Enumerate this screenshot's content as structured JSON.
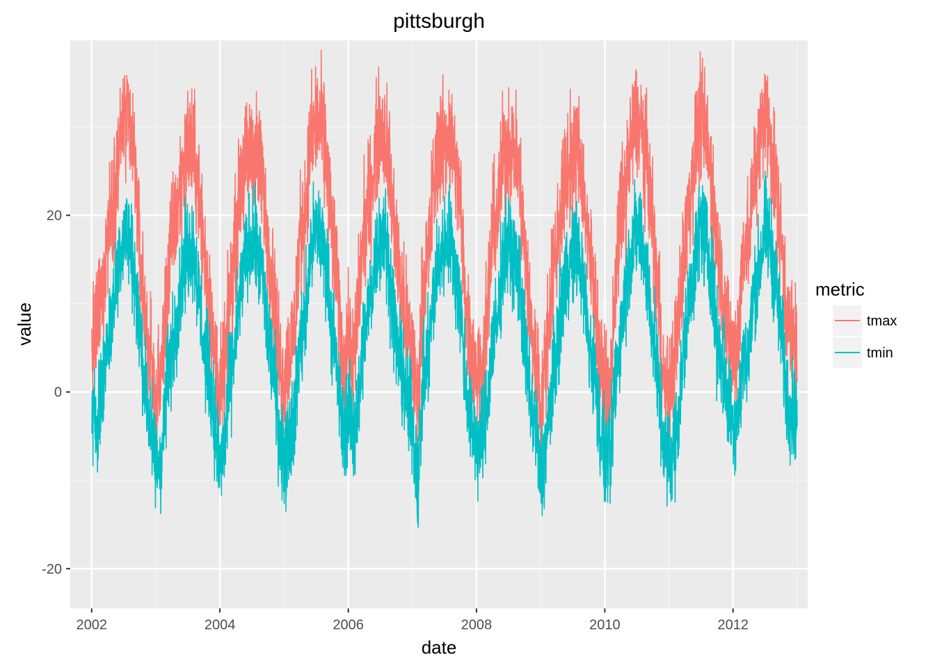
{
  "chart_data": {
    "type": "line",
    "title": "pittsburgh",
    "xlabel": "date",
    "ylabel": "value",
    "x_range": [
      "2001-09-01",
      "2013-03-01"
    ],
    "ylim": [
      -24.5,
      39.8
    ],
    "x_ticks": [
      "2002",
      "2004",
      "2006",
      "2008",
      "2010",
      "2012"
    ],
    "y_ticks": [
      -20,
      0,
      20
    ],
    "grid": true,
    "legend": {
      "title": "metric",
      "position": "right"
    },
    "series": [
      {
        "name": "tmax",
        "color": "#F8766D",
        "values": [
          [
            "2002-01-01",
            3.9
          ],
          [
            "2002-02-01",
            7.8
          ],
          [
            "2002-03-01",
            11.1
          ],
          [
            "2002-04-01",
            18.3
          ],
          [
            "2002-05-01",
            20.6
          ],
          [
            "2002-06-01",
            27.2
          ],
          [
            "2002-07-01",
            30.6
          ],
          [
            "2002-08-01",
            30.0
          ],
          [
            "2002-09-01",
            26.7
          ],
          [
            "2002-10-01",
            15.6
          ],
          [
            "2002-11-01",
            8.9
          ],
          [
            "2002-12-01",
            3.3
          ],
          [
            "2003-01-01",
            -1.1
          ],
          [
            "2003-02-01",
            1.7
          ],
          [
            "2003-03-01",
            10.0
          ],
          [
            "2003-04-01",
            17.2
          ],
          [
            "2003-05-01",
            20.0
          ],
          [
            "2003-06-01",
            25.0
          ],
          [
            "2003-07-01",
            28.3
          ],
          [
            "2003-08-01",
            27.8
          ],
          [
            "2003-09-01",
            23.3
          ],
          [
            "2003-10-01",
            16.1
          ],
          [
            "2003-11-01",
            11.1
          ],
          [
            "2003-12-01",
            3.9
          ],
          [
            "2004-01-01",
            -0.6
          ],
          [
            "2004-02-01",
            3.3
          ],
          [
            "2004-03-01",
            11.7
          ],
          [
            "2004-04-01",
            17.8
          ],
          [
            "2004-05-01",
            24.4
          ],
          [
            "2004-06-01",
            26.1
          ],
          [
            "2004-07-01",
            27.8
          ],
          [
            "2004-08-01",
            26.7
          ],
          [
            "2004-09-01",
            23.9
          ],
          [
            "2004-10-01",
            16.7
          ],
          [
            "2004-11-01",
            11.7
          ],
          [
            "2004-12-01",
            4.4
          ],
          [
            "2005-01-01",
            1.1
          ],
          [
            "2005-02-01",
            4.4
          ],
          [
            "2005-03-01",
            7.2
          ],
          [
            "2005-04-01",
            17.8
          ],
          [
            "2005-05-01",
            20.6
          ],
          [
            "2005-06-01",
            28.3
          ],
          [
            "2005-07-01",
            30.6
          ],
          [
            "2005-08-01",
            30.0
          ],
          [
            "2005-09-01",
            26.1
          ],
          [
            "2005-10-01",
            18.3
          ],
          [
            "2005-11-01",
            11.7
          ],
          [
            "2005-12-01",
            2.8
          ],
          [
            "2006-01-01",
            6.1
          ],
          [
            "2006-02-01",
            3.3
          ],
          [
            "2006-03-01",
            10.6
          ],
          [
            "2006-04-01",
            18.9
          ],
          [
            "2006-05-01",
            21.7
          ],
          [
            "2006-06-01",
            26.7
          ],
          [
            "2006-07-01",
            30.0
          ],
          [
            "2006-08-01",
            29.4
          ],
          [
            "2006-09-01",
            23.3
          ],
          [
            "2006-10-01",
            16.1
          ],
          [
            "2006-11-01",
            11.1
          ],
          [
            "2006-12-01",
            7.2
          ],
          [
            "2007-01-01",
            4.4
          ],
          [
            "2007-02-01",
            -1.7
          ],
          [
            "2007-03-01",
            11.7
          ],
          [
            "2007-04-01",
            15.0
          ],
          [
            "2007-05-01",
            23.3
          ],
          [
            "2007-06-01",
            27.8
          ],
          [
            "2007-07-01",
            28.3
          ],
          [
            "2007-08-01",
            29.4
          ],
          [
            "2007-09-01",
            26.1
          ],
          [
            "2007-10-01",
            21.1
          ],
          [
            "2007-11-01",
            10.0
          ],
          [
            "2007-12-01",
            4.4
          ],
          [
            "2008-01-01",
            2.8
          ],
          [
            "2008-02-01",
            1.7
          ],
          [
            "2008-03-01",
            8.3
          ],
          [
            "2008-04-01",
            18.3
          ],
          [
            "2008-05-01",
            20.0
          ],
          [
            "2008-06-01",
            27.2
          ],
          [
            "2008-07-01",
            28.3
          ],
          [
            "2008-08-01",
            27.8
          ],
          [
            "2008-09-01",
            24.4
          ],
          [
            "2008-10-01",
            16.7
          ],
          [
            "2008-11-01",
            8.3
          ],
          [
            "2008-12-01",
            3.9
          ],
          [
            "2009-01-01",
            -1.7
          ],
          [
            "2009-02-01",
            4.4
          ],
          [
            "2009-03-01",
            11.1
          ],
          [
            "2009-04-01",
            16.7
          ],
          [
            "2009-05-01",
            21.7
          ],
          [
            "2009-06-01",
            25.6
          ],
          [
            "2009-07-01",
            26.1
          ],
          [
            "2009-08-01",
            27.8
          ],
          [
            "2009-09-01",
            23.9
          ],
          [
            "2009-10-01",
            15.6
          ],
          [
            "2009-11-01",
            12.8
          ],
          [
            "2009-12-01",
            3.3
          ],
          [
            "2010-01-01",
            0.0
          ],
          [
            "2010-02-01",
            -0.6
          ],
          [
            "2010-03-01",
            12.2
          ],
          [
            "2010-04-01",
            20.0
          ],
          [
            "2010-05-01",
            23.3
          ],
          [
            "2010-06-01",
            28.3
          ],
          [
            "2010-07-01",
            30.6
          ],
          [
            "2010-08-01",
            29.4
          ],
          [
            "2010-09-01",
            25.6
          ],
          [
            "2010-10-01",
            18.3
          ],
          [
            "2010-11-01",
            11.1
          ],
          [
            "2010-12-01",
            1.1
          ],
          [
            "2011-01-01",
            -1.1
          ],
          [
            "2011-02-01",
            3.9
          ],
          [
            "2011-03-01",
            8.9
          ],
          [
            "2011-04-01",
            16.7
          ],
          [
            "2011-05-01",
            22.2
          ],
          [
            "2011-06-01",
            27.2
          ],
          [
            "2011-07-01",
            31.1
          ],
          [
            "2011-08-01",
            28.9
          ],
          [
            "2011-09-01",
            23.9
          ],
          [
            "2011-10-01",
            16.7
          ],
          [
            "2011-11-01",
            12.2
          ],
          [
            "2011-12-01",
            6.1
          ],
          [
            "2012-01-01",
            3.9
          ],
          [
            "2012-02-01",
            6.7
          ],
          [
            "2012-03-01",
            17.2
          ],
          [
            "2012-04-01",
            16.7
          ],
          [
            "2012-05-01",
            25.0
          ],
          [
            "2012-06-01",
            28.3
          ],
          [
            "2012-07-01",
            32.2
          ],
          [
            "2012-08-01",
            28.9
          ],
          [
            "2012-09-01",
            23.9
          ],
          [
            "2012-10-01",
            17.2
          ],
          [
            "2012-11-01",
            9.4
          ],
          [
            "2012-12-01",
            5.6
          ]
        ]
      },
      {
        "name": "tmin",
        "color": "#00BFC4",
        "values": [
          [
            "2002-01-01",
            -3.9
          ],
          [
            "2002-02-01",
            -2.8
          ],
          [
            "2002-03-01",
            0.0
          ],
          [
            "2002-04-01",
            6.1
          ],
          [
            "2002-05-01",
            8.9
          ],
          [
            "2002-06-01",
            15.0
          ],
          [
            "2002-07-01",
            17.8
          ],
          [
            "2002-08-01",
            17.2
          ],
          [
            "2002-09-01",
            13.9
          ],
          [
            "2002-10-01",
            6.7
          ],
          [
            "2002-11-01",
            0.6
          ],
          [
            "2002-12-01",
            -3.9
          ],
          [
            "2003-01-01",
            -8.3
          ],
          [
            "2003-02-01",
            -7.8
          ],
          [
            "2003-03-01",
            0.0
          ],
          [
            "2003-04-01",
            4.4
          ],
          [
            "2003-05-01",
            8.9
          ],
          [
            "2003-06-01",
            13.3
          ],
          [
            "2003-07-01",
            16.1
          ],
          [
            "2003-08-01",
            16.7
          ],
          [
            "2003-09-01",
            11.7
          ],
          [
            "2003-10-01",
            5.0
          ],
          [
            "2003-11-01",
            2.2
          ],
          [
            "2003-12-01",
            -3.3
          ],
          [
            "2004-01-01",
            -8.9
          ],
          [
            "2004-02-01",
            -5.0
          ],
          [
            "2004-03-01",
            1.7
          ],
          [
            "2004-04-01",
            5.6
          ],
          [
            "2004-05-01",
            12.2
          ],
          [
            "2004-06-01",
            15.6
          ],
          [
            "2004-07-01",
            17.2
          ],
          [
            "2004-08-01",
            15.6
          ],
          [
            "2004-09-01",
            13.3
          ],
          [
            "2004-10-01",
            6.1
          ],
          [
            "2004-11-01",
            2.8
          ],
          [
            "2004-12-01",
            -3.9
          ],
          [
            "2005-01-01",
            -7.8
          ],
          [
            "2005-02-01",
            -4.4
          ],
          [
            "2005-03-01",
            -2.8
          ],
          [
            "2005-04-01",
            5.6
          ],
          [
            "2005-05-01",
            8.3
          ],
          [
            "2005-06-01",
            16.1
          ],
          [
            "2005-07-01",
            18.3
          ],
          [
            "2005-08-01",
            17.8
          ],
          [
            "2005-09-01",
            13.9
          ],
          [
            "2005-10-01",
            7.2
          ],
          [
            "2005-11-01",
            1.7
          ],
          [
            "2005-12-01",
            -5.0
          ],
          [
            "2006-01-01",
            -2.2
          ],
          [
            "2006-02-01",
            -5.0
          ],
          [
            "2006-03-01",
            -0.6
          ],
          [
            "2006-04-01",
            6.1
          ],
          [
            "2006-05-01",
            10.0
          ],
          [
            "2006-06-01",
            14.4
          ],
          [
            "2006-07-01",
            18.3
          ],
          [
            "2006-08-01",
            17.2
          ],
          [
            "2006-09-01",
            11.7
          ],
          [
            "2006-10-01",
            5.6
          ],
          [
            "2006-11-01",
            2.8
          ],
          [
            "2006-12-01",
            -1.1
          ],
          [
            "2007-01-01",
            -3.3
          ],
          [
            "2007-02-01",
            -11.1
          ],
          [
            "2007-03-01",
            0.6
          ],
          [
            "2007-04-01",
            3.9
          ],
          [
            "2007-05-01",
            10.6
          ],
          [
            "2007-06-01",
            15.0
          ],
          [
            "2007-07-01",
            16.7
          ],
          [
            "2007-08-01",
            17.8
          ],
          [
            "2007-09-01",
            13.3
          ],
          [
            "2007-10-01",
            10.0
          ],
          [
            "2007-11-01",
            1.1
          ],
          [
            "2007-12-01",
            -3.3
          ],
          [
            "2008-01-01",
            -5.6
          ],
          [
            "2008-02-01",
            -6.1
          ],
          [
            "2008-03-01",
            -1.7
          ],
          [
            "2008-04-01",
            5.6
          ],
          [
            "2008-05-01",
            7.8
          ],
          [
            "2008-06-01",
            15.6
          ],
          [
            "2008-07-01",
            16.7
          ],
          [
            "2008-08-01",
            15.0
          ],
          [
            "2008-09-01",
            13.3
          ],
          [
            "2008-10-01",
            5.0
          ],
          [
            "2008-11-01",
            -0.6
          ],
          [
            "2008-12-01",
            -3.9
          ],
          [
            "2009-01-01",
            -10.0
          ],
          [
            "2009-02-01",
            -5.6
          ],
          [
            "2009-03-01",
            -0.6
          ],
          [
            "2009-04-01",
            4.4
          ],
          [
            "2009-05-01",
            10.0
          ],
          [
            "2009-06-01",
            14.4
          ],
          [
            "2009-07-01",
            15.0
          ],
          [
            "2009-08-01",
            16.1
          ],
          [
            "2009-09-01",
            12.2
          ],
          [
            "2009-10-01",
            5.6
          ],
          [
            "2009-11-01",
            2.8
          ],
          [
            "2009-12-01",
            -3.9
          ],
          [
            "2010-01-01",
            -7.2
          ],
          [
            "2010-02-01",
            -7.8
          ],
          [
            "2010-03-01",
            1.1
          ],
          [
            "2010-04-01",
            6.7
          ],
          [
            "2010-05-01",
            11.7
          ],
          [
            "2010-06-01",
            16.7
          ],
          [
            "2010-07-01",
            18.3
          ],
          [
            "2010-08-01",
            17.2
          ],
          [
            "2010-09-01",
            12.8
          ],
          [
            "2010-10-01",
            6.7
          ],
          [
            "2010-11-01",
            1.1
          ],
          [
            "2010-12-01",
            -6.1
          ],
          [
            "2011-01-01",
            -8.3
          ],
          [
            "2011-02-01",
            -5.6
          ],
          [
            "2011-03-01",
            -1.7
          ],
          [
            "2011-04-01",
            5.6
          ],
          [
            "2011-05-01",
            11.1
          ],
          [
            "2011-06-01",
            15.0
          ],
          [
            "2011-07-01",
            19.4
          ],
          [
            "2011-08-01",
            16.7
          ],
          [
            "2011-09-01",
            13.3
          ],
          [
            "2011-10-01",
            6.1
          ],
          [
            "2011-11-01",
            3.3
          ],
          [
            "2011-12-01",
            -1.1
          ],
          [
            "2012-01-01",
            -3.3
          ],
          [
            "2012-02-01",
            -2.2
          ],
          [
            "2012-03-01",
            4.4
          ],
          [
            "2012-04-01",
            3.9
          ],
          [
            "2012-05-01",
            11.7
          ],
          [
            "2012-06-01",
            14.4
          ],
          [
            "2012-07-01",
            18.9
          ],
          [
            "2012-08-01",
            16.7
          ],
          [
            "2012-09-01",
            12.2
          ],
          [
            "2012-10-01",
            6.7
          ],
          [
            "2012-11-01",
            -0.6
          ],
          [
            "2012-12-01",
            -2.2
          ]
        ]
      }
    ]
  }
}
